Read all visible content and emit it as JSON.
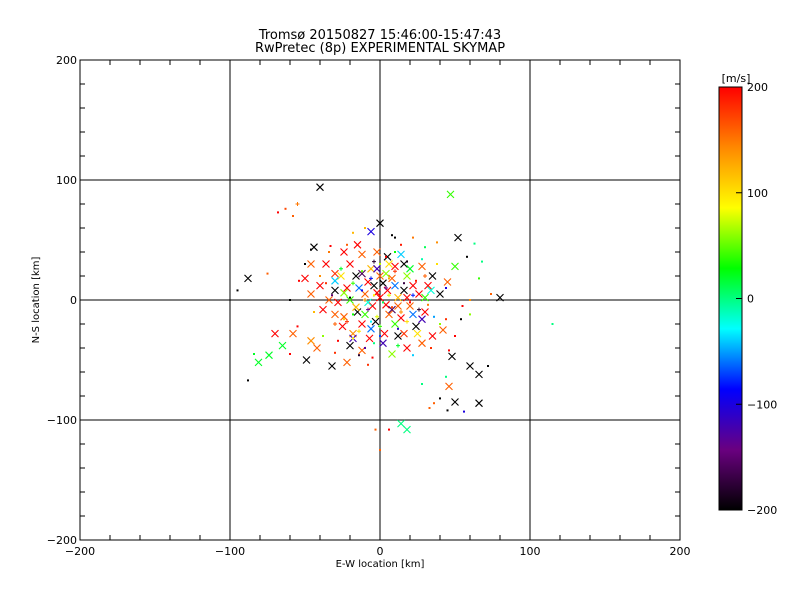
{
  "chart_data": {
    "type": "scatter",
    "title": "Tromsø 20150827 15:46:00-15:47:43",
    "subtitle": "RwPretec (8p) EXPERIMENTAL SKYMAP",
    "xlabel": "E-W location [km]",
    "ylabel": "N-S location [km]",
    "xlim": [
      -200,
      200
    ],
    "ylim": [
      -200,
      200
    ],
    "xticks": [
      -200,
      -100,
      0,
      100,
      200
    ],
    "yticks": [
      -200,
      -100,
      0,
      100,
      200
    ],
    "grid": true,
    "colorbar": {
      "label": "[m/s]",
      "min": -200,
      "max": 200,
      "ticks": [
        -200,
        -100,
        0,
        100,
        200
      ],
      "stops": [
        "#000000",
        "#6a0080",
        "#0000ff",
        "#00ffff",
        "#00ff00",
        "#ffff00",
        "#ff8800",
        "#ff0000"
      ],
      "placement": "right"
    },
    "markers": [
      "x",
      "plus",
      "dot"
    ],
    "points": [
      [
        -40,
        94,
        -200,
        "x"
      ],
      [
        -55,
        80,
        150,
        "plus"
      ],
      [
        -63,
        76,
        170,
        "dot"
      ],
      [
        -68,
        73,
        200,
        "dot"
      ],
      [
        -58,
        70,
        160,
        "dot"
      ],
      [
        -75,
        22,
        160,
        "dot"
      ],
      [
        -88,
        18,
        -200,
        "x"
      ],
      [
        -95,
        8,
        -200,
        "dot"
      ],
      [
        -81,
        -52,
        20,
        "x"
      ],
      [
        -74,
        -46,
        20,
        "x"
      ],
      [
        -84,
        -45,
        20,
        "dot"
      ],
      [
        -88,
        -67,
        -200,
        "dot"
      ],
      [
        0,
        64,
        -200,
        "x"
      ],
      [
        -10,
        60,
        120,
        "dot"
      ],
      [
        -18,
        56,
        120,
        "dot"
      ],
      [
        -6,
        57,
        -100,
        "x"
      ],
      [
        10,
        52,
        -200,
        "dot"
      ],
      [
        22,
        52,
        150,
        "dot"
      ],
      [
        38,
        48,
        140,
        "dot"
      ],
      [
        47,
        88,
        40,
        "x"
      ],
      [
        52,
        52,
        -200,
        "x"
      ],
      [
        63,
        47,
        0,
        "dot"
      ],
      [
        58,
        36,
        -200,
        "dot"
      ],
      [
        68,
        32,
        0,
        "dot"
      ],
      [
        80,
        2,
        -200,
        "x"
      ],
      [
        74,
        5,
        160,
        "dot"
      ],
      [
        66,
        18,
        40,
        "dot"
      ],
      [
        50,
        28,
        40,
        "x"
      ],
      [
        115,
        -20,
        0,
        "dot"
      ],
      [
        55,
        -5,
        200,
        "dot"
      ],
      [
        60,
        -12,
        60,
        "dot"
      ],
      [
        44,
        -16,
        180,
        "dot"
      ],
      [
        48,
        -47,
        -200,
        "x"
      ],
      [
        60,
        -55,
        -200,
        "x"
      ],
      [
        66,
        -62,
        -200,
        "x"
      ],
      [
        72,
        -55,
        -200,
        "dot"
      ],
      [
        46,
        -72,
        160,
        "x"
      ],
      [
        50,
        -85,
        -200,
        "x"
      ],
      [
        66,
        -86,
        -200,
        "x"
      ],
      [
        45,
        -92,
        -200,
        "dot"
      ],
      [
        56,
        -93,
        -100,
        "dot"
      ],
      [
        40,
        -82,
        -200,
        "dot"
      ],
      [
        36,
        -86,
        160,
        "dot"
      ],
      [
        33,
        -90,
        160,
        "dot"
      ],
      [
        44,
        -64,
        0,
        "dot"
      ],
      [
        28,
        -70,
        0,
        "dot"
      ],
      [
        14,
        -103,
        0,
        "x"
      ],
      [
        18,
        -108,
        0,
        "x"
      ],
      [
        6,
        -108,
        200,
        "dot"
      ],
      [
        0,
        -125,
        160,
        "dot"
      ],
      [
        -3,
        -108,
        160,
        "dot"
      ],
      [
        -22,
        -52,
        160,
        "x"
      ],
      [
        -32,
        -55,
        -200,
        "x"
      ],
      [
        -42,
        -40,
        160,
        "x"
      ],
      [
        -49,
        -50,
        -200,
        "x"
      ],
      [
        -46,
        -34,
        140,
        "x"
      ],
      [
        -60,
        -45,
        200,
        "dot"
      ],
      [
        -58,
        -28,
        160,
        "x"
      ],
      [
        -70,
        -28,
        200,
        "x"
      ],
      [
        -65,
        -38,
        20,
        "x"
      ],
      [
        -55,
        -22,
        200,
        "dot"
      ],
      [
        -46,
        5,
        160,
        "x"
      ],
      [
        -40,
        12,
        200,
        "x"
      ],
      [
        -50,
        18,
        200,
        "x"
      ],
      [
        -30,
        22,
        180,
        "x"
      ],
      [
        -36,
        30,
        200,
        "x"
      ],
      [
        -46,
        30,
        160,
        "x"
      ],
      [
        -44,
        44,
        -200,
        "x"
      ],
      [
        -33,
        45,
        200,
        "dot"
      ],
      [
        -24,
        40,
        200,
        "x"
      ],
      [
        -15,
        46,
        200,
        "x"
      ],
      [
        -12,
        38,
        160,
        "x"
      ],
      [
        -2,
        40,
        160,
        "x"
      ],
      [
        5,
        36,
        -200,
        "x"
      ],
      [
        16,
        30,
        -200,
        "x"
      ],
      [
        -20,
        30,
        200,
        "x"
      ],
      [
        -30,
        8,
        -200,
        "x"
      ],
      [
        -38,
        -8,
        200,
        "x"
      ],
      [
        -30,
        -12,
        160,
        "x"
      ],
      [
        -25,
        -22,
        200,
        "x"
      ],
      [
        -20,
        -38,
        -200,
        "x"
      ],
      [
        -12,
        -42,
        160,
        "x"
      ],
      [
        -5,
        -48,
        200,
        "dot"
      ],
      [
        8,
        -45,
        60,
        "x"
      ],
      [
        18,
        -40,
        200,
        "x"
      ],
      [
        28,
        -36,
        160,
        "x"
      ],
      [
        35,
        -30,
        200,
        "x"
      ],
      [
        42,
        -25,
        160,
        "x"
      ],
      [
        40,
        5,
        -200,
        "x"
      ],
      [
        45,
        15,
        160,
        "x"
      ],
      [
        35,
        20,
        -200,
        "x"
      ],
      [
        28,
        28,
        160,
        "x"
      ],
      [
        22,
        12,
        200,
        "x"
      ],
      [
        18,
        2,
        200,
        "x"
      ],
      [
        12,
        -5,
        160,
        "x"
      ],
      [
        5,
        8,
        200,
        "x"
      ],
      [
        0,
        2,
        200,
        "x"
      ],
      [
        -5,
        -5,
        200,
        "x"
      ],
      [
        -10,
        5,
        160,
        "x"
      ],
      [
        -15,
        -10,
        -200,
        "x"
      ],
      [
        -8,
        15,
        200,
        "x"
      ],
      [
        8,
        18,
        160,
        "x"
      ],
      [
        14,
        -15,
        200,
        "x"
      ],
      [
        -3,
        -18,
        -200,
        "x"
      ],
      [
        3,
        -28,
        200,
        "x"
      ],
      [
        -18,
        -28,
        140,
        "x"
      ],
      [
        -28,
        -2,
        200,
        "x"
      ],
      [
        24,
        -22,
        -200,
        "x"
      ],
      [
        30,
        -10,
        200,
        "x"
      ],
      [
        -6,
        26,
        120,
        "x"
      ],
      [
        10,
        28,
        200,
        "x"
      ],
      [
        2,
        14,
        -200,
        "x"
      ],
      [
        -12,
        -20,
        200,
        "x"
      ],
      [
        6,
        -12,
        160,
        "x"
      ],
      [
        -2,
        6,
        200,
        "x"
      ],
      [
        16,
        8,
        -200,
        "x"
      ],
      [
        -22,
        10,
        200,
        "x"
      ],
      [
        -16,
        20,
        -200,
        "x"
      ],
      [
        20,
        -5,
        160,
        "x"
      ],
      [
        -7,
        -32,
        200,
        "x"
      ],
      [
        26,
        5,
        200,
        "x"
      ],
      [
        -24,
        -14,
        160,
        "x"
      ],
      [
        12,
        -30,
        -200,
        "x"
      ],
      [
        -34,
        0,
        160,
        "x"
      ],
      [
        32,
        12,
        200,
        "x"
      ],
      [
        0,
        20,
        160,
        "x"
      ],
      [
        4,
        -4,
        200,
        "x"
      ],
      [
        -4,
        12,
        -200,
        "x"
      ],
      [
        18,
        20,
        60,
        "x"
      ],
      [
        -20,
        0,
        40,
        "x"
      ],
      [
        10,
        -20,
        40,
        "x"
      ],
      [
        30,
        2,
        40,
        "x"
      ],
      [
        -10,
        -12,
        40,
        "x"
      ],
      [
        6,
        30,
        100,
        "x"
      ],
      [
        -26,
        20,
        100,
        "x"
      ],
      [
        25,
        -28,
        100,
        "x"
      ],
      [
        -14,
        10,
        -60,
        "x"
      ],
      [
        10,
        12,
        -60,
        "x"
      ],
      [
        -6,
        -24,
        -60,
        "x"
      ],
      [
        22,
        -12,
        -60,
        "x"
      ],
      [
        -30,
        16,
        -40,
        "x"
      ],
      [
        14,
        38,
        -40,
        "x"
      ],
      [
        2,
        -36,
        -120,
        "x"
      ],
      [
        -18,
        -32,
        -120,
        "x"
      ],
      [
        28,
        -16,
        -120,
        "x"
      ],
      [
        -2,
        26,
        -120,
        "x"
      ],
      [
        34,
        8,
        -20,
        "x"
      ],
      [
        -8,
        -2,
        -20,
        "x"
      ],
      [
        12,
        2,
        120,
        "x"
      ],
      [
        -16,
        -6,
        120,
        "x"
      ],
      [
        4,
        22,
        60,
        "x"
      ],
      [
        20,
        26,
        20,
        "x"
      ],
      [
        -24,
        6,
        60,
        "x"
      ],
      [
        8,
        -8,
        -160,
        "x"
      ],
      [
        -12,
        22,
        -160,
        "x"
      ],
      [
        16,
        -28,
        180,
        "x"
      ],
      [
        -2,
        -14,
        80,
        "plus"
      ],
      [
        6,
        4,
        80,
        "plus"
      ],
      [
        -10,
        0,
        140,
        "plus"
      ],
      [
        14,
        -10,
        140,
        "plus"
      ],
      [
        -6,
        18,
        -80,
        "plus"
      ],
      [
        22,
        4,
        -80,
        "plus"
      ],
      [
        0,
        -22,
        40,
        "plus"
      ],
      [
        -18,
        14,
        40,
        "plus"
      ],
      [
        10,
        24,
        180,
        "plus"
      ],
      [
        -22,
        -18,
        180,
        "plus"
      ],
      [
        26,
        -8,
        -180,
        "plus"
      ],
      [
        -4,
        32,
        -180,
        "plus"
      ],
      [
        18,
        -18,
        100,
        "plus"
      ],
      [
        -14,
        -26,
        100,
        "plus"
      ],
      [
        4,
        10,
        -140,
        "plus"
      ],
      [
        -8,
        -8,
        -140,
        "plus"
      ],
      [
        12,
        -38,
        20,
        "plus"
      ],
      [
        -26,
        26,
        20,
        "plus"
      ],
      [
        30,
        20,
        160,
        "plus"
      ],
      [
        -30,
        -20,
        160,
        "plus"
      ],
      [
        2,
        -2,
        10,
        "dot"
      ],
      [
        -4,
        4,
        90,
        "dot"
      ],
      [
        8,
        -6,
        170,
        "dot"
      ],
      [
        -12,
        8,
        -90,
        "dot"
      ],
      [
        16,
        14,
        -170,
        "dot"
      ],
      [
        -18,
        -12,
        30,
        "dot"
      ],
      [
        6,
        18,
        130,
        "dot"
      ],
      [
        -6,
        -18,
        -30,
        "dot"
      ],
      [
        20,
        -2,
        200,
        "dot"
      ],
      [
        -20,
        2,
        -200,
        "dot"
      ],
      [
        0,
        30,
        70,
        "dot"
      ],
      [
        0,
        -30,
        -70,
        "dot"
      ],
      [
        24,
        16,
        190,
        "dot"
      ],
      [
        -24,
        -16,
        110,
        "dot"
      ],
      [
        12,
        -24,
        -110,
        "dot"
      ],
      [
        -12,
        24,
        50,
        "dot"
      ],
      [
        32,
        -4,
        150,
        "dot"
      ],
      [
        -32,
        4,
        -150,
        "dot"
      ],
      [
        4,
        36,
        200,
        "dot"
      ],
      [
        -4,
        -36,
        0,
        "dot"
      ],
      [
        36,
        -14,
        -50,
        "dot"
      ],
      [
        -36,
        14,
        180,
        "dot"
      ],
      [
        18,
        32,
        -190,
        "dot"
      ],
      [
        -18,
        -32,
        90,
        "dot"
      ],
      [
        10,
        40,
        30,
        "dot"
      ],
      [
        -10,
        -40,
        -130,
        "dot"
      ],
      [
        40,
        -20,
        60,
        "dot"
      ],
      [
        -40,
        20,
        140,
        "dot"
      ],
      [
        28,
        34,
        -10,
        "dot"
      ],
      [
        -28,
        -34,
        200,
        "dot"
      ],
      [
        44,
        10,
        -100,
        "dot"
      ],
      [
        -44,
        -10,
        120,
        "dot"
      ],
      [
        14,
        46,
        190,
        "dot"
      ],
      [
        -14,
        -46,
        -180,
        "dot"
      ],
      [
        50,
        -30,
        200,
        "dot"
      ],
      [
        -50,
        30,
        -200,
        "dot"
      ],
      [
        34,
        -40,
        180,
        "dot"
      ],
      [
        -34,
        40,
        150,
        "dot"
      ],
      [
        22,
        -46,
        -40,
        "dot"
      ],
      [
        -22,
        46,
        160,
        "dot"
      ],
      [
        60,
        0,
        140,
        "dot"
      ],
      [
        -60,
        0,
        -200,
        "dot"
      ],
      [
        8,
        54,
        -200,
        "dot"
      ],
      [
        -8,
        -54,
        180,
        "dot"
      ],
      [
        30,
        44,
        10,
        "dot"
      ],
      [
        -30,
        -44,
        180,
        "dot"
      ],
      [
        54,
        -16,
        -200,
        "dot"
      ],
      [
        -54,
        16,
        200,
        "dot"
      ],
      [
        38,
        30,
        100,
        "dot"
      ],
      [
        -38,
        -30,
        60,
        "dot"
      ],
      [
        46,
        -42,
        200,
        "dot"
      ],
      [
        -46,
        42,
        -200,
        "dot"
      ]
    ]
  }
}
